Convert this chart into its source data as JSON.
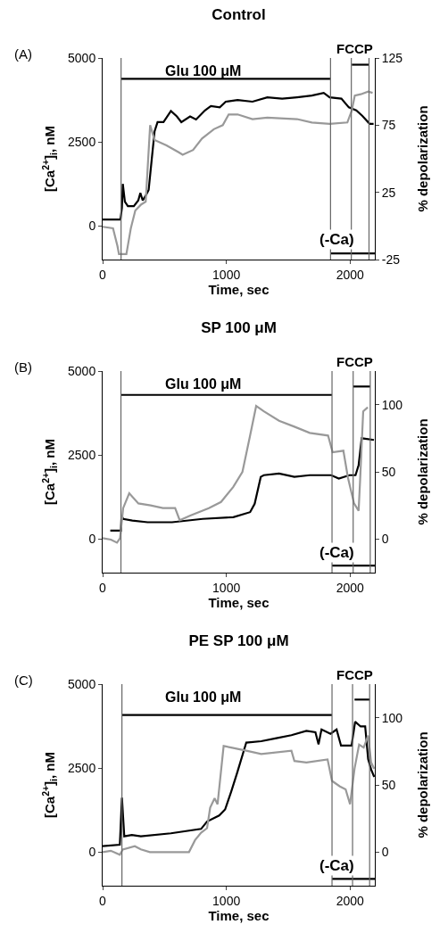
{
  "chart_data": [
    {
      "type": "line",
      "title": "Control",
      "xlabel": "Time, sec",
      "ylabel": "[Ca$^{2+}$]$_{i}$, nM",
      "y2label": "% depolarization",
      "annotations": [
        "(A)",
        "Glu 100 μM",
        "FCCP",
        "(-Ca)"
      ],
      "xlim": [
        0,
        2200
      ],
      "xticks": [
        0,
        1000,
        2000
      ],
      "ylim": [
        -1000,
        5000
      ],
      "yticks": [
        0,
        2500,
        5000
      ],
      "y2lim": [
        -25,
        125
      ],
      "y2ticks": [
        -25,
        25,
        75,
        125
      ],
      "grid": false,
      "marker": "none",
      "line_style": "solid",
      "series": [
        {
          "color": "#000000",
          "x": [
            0,
            144,
            156,
            163,
            180,
            204,
            252,
            288,
            305,
            324,
            348,
            372,
            396,
            420,
            444,
            492,
            552,
            600,
            636,
            707,
            755,
            827,
            875,
            947,
            995,
            1091,
            1211,
            1331,
            1451,
            1571,
            1691,
            1787,
            1835,
            1930,
            1990,
            2050,
            2098,
            2158,
            2190
          ],
          "values": [
            190,
            190,
            540,
            1250,
            720,
            590,
            590,
            760,
            980,
            760,
            900,
            1070,
            1950,
            2820,
            3090,
            3090,
            3420,
            3260,
            3090,
            3260,
            3170,
            3440,
            3570,
            3530,
            3700,
            3750,
            3700,
            3830,
            3790,
            3830,
            3880,
            3960,
            3830,
            3790,
            3530,
            3440,
            3280,
            3040,
            3040
          ]
        },
        {
          "color": "#999999",
          "axis": "y2",
          "x": [
            0,
            84,
            120,
            132,
            192,
            228,
            264,
            312,
            348,
            384,
            420,
            516,
            612,
            647,
            731,
            803,
            899,
            971,
            1019,
            1091,
            1211,
            1331,
            1571,
            1691,
            1835,
            1978,
            2014,
            2038,
            2086,
            2146,
            2182
          ],
          "values": [
            -0.6,
            -1.7,
            -15,
            -21,
            -21,
            -1.7,
            11.5,
            16,
            18,
            75,
            64,
            60,
            55,
            53,
            56.5,
            65,
            72,
            75,
            83,
            83,
            79.5,
            80.6,
            79.5,
            77,
            76,
            77,
            86,
            97,
            98,
            100,
            99
          ]
        },
        {
          "color": "#000000",
          "x": [
            149,
            1842
          ],
          "values": [
            4380,
            4380
          ]
        },
        {
          "color": "#000000",
          "x": [
            2014,
            2153
          ],
          "values": [
            4800,
            4800
          ]
        },
        {
          "color": "#000000",
          "x": [
            1842,
            2200
          ],
          "values": [
            -820,
            -820
          ]
        }
      ],
      "ref_lines": [
        {
          "axis": "x",
          "value": 149
        },
        {
          "axis": "x",
          "value": 1842
        },
        {
          "axis": "x",
          "value": 2010
        },
        {
          "axis": "x",
          "value": 2153
        }
      ]
    },
    {
      "type": "line",
      "title": "SP 100 μM",
      "xlabel": "Time, sec",
      "ylabel": "[Ca$^{2+}$]$_{i}$, nM",
      "y2label": "% depolarization",
      "annotations": [
        "(B)",
        "Glu 100 μM",
        "FCCP",
        "(-Ca)"
      ],
      "xlim": [
        0,
        2200
      ],
      "xticks": [
        0,
        1000,
        2000
      ],
      "ylim": [
        -1000,
        5000
      ],
      "yticks": [
        0,
        2500,
        5000
      ],
      "y2lim": [
        -25,
        125
      ],
      "y2ticks": [
        0,
        50,
        100
      ],
      "grid": false,
      "marker": "none",
      "line_style": "solid",
      "series": [
        {
          "color": "#000000",
          "x": [
            62,
            148,
            153,
            166,
            240,
            363,
            561,
            808,
            1056,
            1192,
            1229,
            1278,
            1303,
            1426,
            1550,
            1674,
            1847,
            1909,
            1995,
            2044,
            2069,
            2094,
            2193
          ],
          "values": [
            250,
            250,
            700,
            600,
            550,
            500,
            500,
            600,
            650,
            800,
            1050,
            1850,
            1900,
            1950,
            1850,
            1900,
            1900,
            1800,
            1900,
            1900,
            2200,
            3000,
            2950
          ]
        },
        {
          "color": "#999999",
          "axis": "y2",
          "x": [
            0,
            67,
            116,
            141,
            166,
            215,
            289,
            388,
            487,
            586,
            623,
            709,
            858,
            957,
            1056,
            1130,
            1192,
            1241,
            1303,
            1426,
            1550,
            1674,
            1822,
            1859,
            1946,
            1983,
            2032,
            2069,
            2082,
            2106,
            2143
          ],
          "values": [
            0.7,
            -0.4,
            -2.7,
            0.7,
            23,
            34,
            26.5,
            25,
            23,
            23,
            14,
            17.5,
            23,
            27.6,
            38.8,
            50,
            77,
            99,
            95,
            88,
            83.6,
            79,
            77,
            64.6,
            65.7,
            45.5,
            26.5,
            21,
            45.5,
            95,
            98
          ]
        },
        {
          "color": "#000000",
          "x": [
            148,
            1854
          ],
          "values": [
            4290,
            4290
          ]
        },
        {
          "color": "#000000",
          "x": [
            2025,
            2163
          ],
          "values": [
            4540,
            4540
          ]
        },
        {
          "color": "#000000",
          "x": [
            1854,
            2200
          ],
          "values": [
            -790,
            -790
          ]
        }
      ],
      "ref_lines": [
        {
          "axis": "x",
          "value": 148
        },
        {
          "axis": "x",
          "value": 1854
        },
        {
          "axis": "x",
          "value": 2025
        },
        {
          "axis": "x",
          "value": 2163
        }
      ]
    },
    {
      "type": "line",
      "title": "PE SP 100 μM",
      "xlabel": "Time, sec",
      "ylabel": "[Ca$^{2+}$]$_{i}$, nM",
      "y2label": "% depolarization",
      "annotations": [
        "(C)",
        "Glu 100 μM",
        "FCCP",
        "(-Ca)"
      ],
      "xlim": [
        0,
        2200
      ],
      "xticks": [
        0,
        1000,
        2000
      ],
      "ylim": [
        -1000,
        5000
      ],
      "yticks": [
        0,
        2500,
        5000
      ],
      "y2lim": [
        -25,
        125
      ],
      "y2ticks": [
        0,
        50,
        100
      ],
      "grid": false,
      "marker": "none",
      "line_style": "solid",
      "series": [
        {
          "color": "#000000",
          "x": [
            0,
            139,
            156,
            175,
            236,
            309,
            552,
            796,
            844,
            942,
            990,
            1039,
            1088,
            1161,
            1282,
            1404,
            1526,
            1647,
            1720,
            1745,
            1769,
            1842,
            1891,
            1927,
            2012,
            2041,
            2085,
            2122,
            2146,
            2170,
            2195
          ],
          "values": [
            180,
            220,
            1620,
            470,
            510,
            470,
            560,
            690,
            910,
            1090,
            1270,
            1800,
            2370,
            3260,
            3300,
            3390,
            3480,
            3610,
            3570,
            3210,
            3650,
            3520,
            3650,
            3170,
            3170,
            3880,
            3740,
            3740,
            2770,
            2460,
            2240
          ]
        },
        {
          "color": "#999999",
          "axis": "y2",
          "x": [
            0,
            66,
            139,
            163,
            260,
            309,
            382,
            552,
            698,
            747,
            796,
            844,
            869,
            905,
            929,
            978,
            1039,
            1161,
            1282,
            1526,
            1550,
            1647,
            1818,
            1854,
            1915,
            1964,
            2000,
            2036,
            2073,
            2110,
            2146,
            2170,
            2195
          ],
          "values": [
            0,
            1,
            -2,
            2,
            4.4,
            2,
            0,
            0,
            0,
            8.9,
            14.4,
            17.8,
            33,
            40,
            35.6,
            79,
            77.8,
            75.5,
            73,
            75.5,
            67.8,
            66.7,
            69,
            53,
            49,
            46.7,
            35.6,
            62,
            80,
            77.8,
            86.7,
            66.7,
            62
          ]
        },
        {
          "color": "#000000",
          "x": [
            156,
            1854
          ],
          "values": [
            4080,
            4080
          ]
        },
        {
          "color": "#000000",
          "x": [
            2036,
            2158
          ],
          "values": [
            4540,
            4540
          ]
        },
        {
          "color": "#000000",
          "x": [
            1854,
            2200
          ],
          "values": [
            -800,
            -800
          ]
        }
      ],
      "ref_lines": [
        {
          "axis": "x",
          "value": 156
        },
        {
          "axis": "x",
          "value": 1854
        },
        {
          "axis": "x",
          "value": 2020
        },
        {
          "axis": "x",
          "value": 2158
        }
      ]
    }
  ]
}
